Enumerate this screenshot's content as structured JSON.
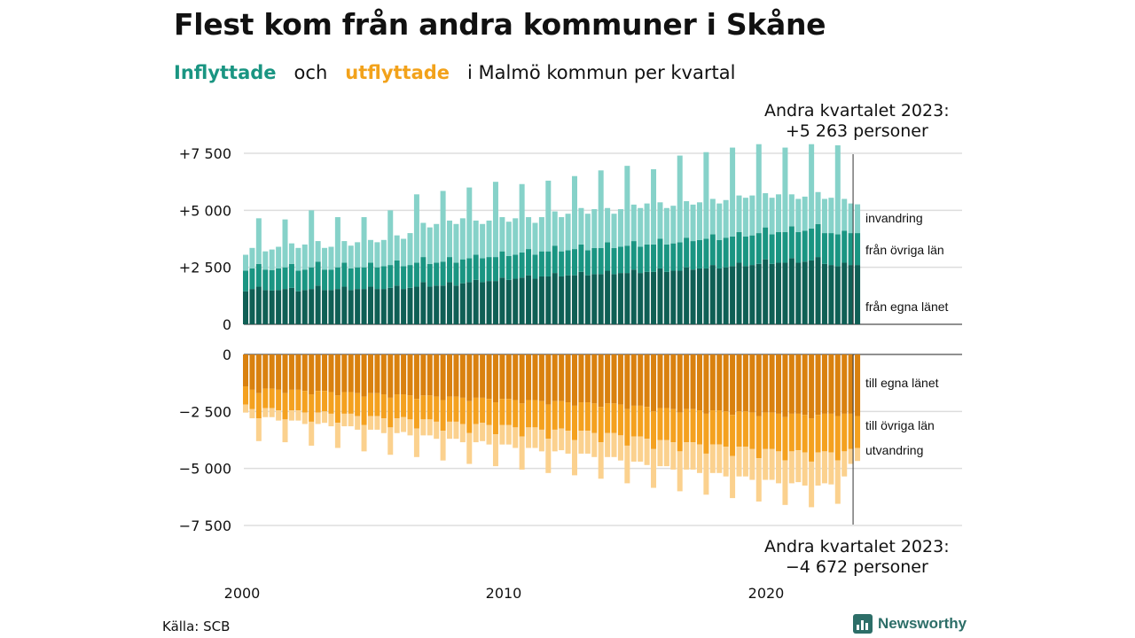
{
  "title": "Flest kom från andra kommuner i Skåne",
  "subtitle": {
    "inflyttade": "Inflyttade",
    "och": "och",
    "utflyttade": "utflyttade",
    "rest": "i Malmö  kommun  per  kvartal"
  },
  "note_top": {
    "line1": "Andra kvartalet 2023:",
    "line2": "+5 263 personer"
  },
  "note_bottom": {
    "line1": "Andra kvartalet 2023:",
    "line2": "−4 672 personer"
  },
  "source": "Källa: SCB",
  "brand": "Newsworthy",
  "colors": {
    "in_egna": "#0f5f55",
    "in_ovriga": "#1a9582",
    "in_invandring": "#86d2c9",
    "out_egna": "#d9810f",
    "out_ovriga": "#f4a11f",
    "out_utvandring": "#fbd18e",
    "grid": "#dddddd"
  },
  "chart_data": {
    "type": "bar",
    "stacked": true,
    "x": {
      "start": "2000 Q1",
      "end": "2023 Q2",
      "ticks": [
        "2000",
        "2010",
        "2020"
      ]
    },
    "inflow": {
      "ylim": [
        0,
        7500
      ],
      "ticks": [
        0,
        2500,
        5000,
        7500
      ],
      "tick_labels": [
        "0",
        "+2 500",
        "+5 000",
        "+7 500"
      ],
      "series": [
        {
          "name": "från egna länet",
          "values": [
            1450,
            1550,
            1650,
            1500,
            1480,
            1500,
            1550,
            1600,
            1450,
            1500,
            1550,
            1700,
            1500,
            1500,
            1550,
            1650,
            1500,
            1550,
            1550,
            1650,
            1550,
            1550,
            1600,
            1700,
            1550,
            1600,
            1650,
            1850,
            1650,
            1700,
            1700,
            1850,
            1700,
            1800,
            1850,
            1950,
            1850,
            1900,
            1900,
            2050,
            1950,
            2000,
            2050,
            2150,
            2000,
            2100,
            2100,
            2250,
            2100,
            2150,
            2150,
            2300,
            2150,
            2200,
            2200,
            2350,
            2200,
            2250,
            2250,
            2400,
            2250,
            2300,
            2300,
            2450,
            2300,
            2350,
            2350,
            2500,
            2400,
            2450,
            2450,
            2600,
            2450,
            2500,
            2550,
            2700,
            2550,
            2600,
            2650,
            2850,
            2650,
            2700,
            2700,
            2900,
            2700,
            2750,
            2800,
            2950,
            2650,
            2600,
            2550,
            2700,
            2600,
            2600
          ]
        },
        {
          "name": "från övriga län",
          "values": [
            900,
            900,
            1000,
            900,
            900,
            950,
            950,
            1050,
            900,
            900,
            950,
            1050,
            900,
            900,
            950,
            1050,
            950,
            950,
            950,
            1050,
            950,
            1000,
            1000,
            1100,
            1000,
            1000,
            1050,
            1100,
            1000,
            1000,
            1050,
            1100,
            1000,
            1050,
            1050,
            1100,
            1050,
            1050,
            1050,
            1150,
            1050,
            1050,
            1100,
            1150,
            1050,
            1100,
            1100,
            1200,
            1100,
            1100,
            1150,
            1200,
            1100,
            1150,
            1150,
            1250,
            1150,
            1150,
            1200,
            1250,
            1150,
            1200,
            1200,
            1300,
            1200,
            1200,
            1250,
            1300,
            1250,
            1250,
            1300,
            1350,
            1250,
            1300,
            1300,
            1350,
            1300,
            1300,
            1350,
            1400,
            1300,
            1350,
            1350,
            1400,
            1350,
            1350,
            1400,
            1450,
            1350,
            1400,
            1400,
            1400,
            1400,
            1400
          ]
        },
        {
          "name": "invandring",
          "values": [
            700,
            900,
            2000,
            800,
            900,
            950,
            2100,
            900,
            1000,
            1100,
            2500,
            900,
            950,
            1000,
            2200,
            950,
            1000,
            1100,
            2200,
            1000,
            1100,
            1150,
            2400,
            1100,
            1200,
            1400,
            3000,
            1500,
            1600,
            1700,
            3100,
            1600,
            1700,
            1800,
            3100,
            1500,
            1500,
            1600,
            3300,
            1500,
            1500,
            1600,
            3000,
            1400,
            1400,
            1500,
            3100,
            1500,
            1500,
            1600,
            3200,
            1600,
            1600,
            1700,
            3400,
            1500,
            1500,
            1650,
            3500,
            1600,
            1700,
            1800,
            3300,
            1600,
            1600,
            1650,
            3800,
            1600,
            1600,
            1650,
            3800,
            1550,
            1600,
            1650,
            3900,
            1600,
            1700,
            1750,
            3900,
            1500,
            1600,
            1650,
            3700,
            1400,
            1450,
            1500,
            3700,
            1400,
            1500,
            1550,
            3900,
            1400,
            1300,
            1263
          ]
        }
      ],
      "annotations": [
        "invandring",
        "från övriga län",
        "från egna länet"
      ]
    },
    "outflow": {
      "ylim": [
        -7500,
        0
      ],
      "ticks": [
        0,
        -2500,
        -5000,
        -7500
      ],
      "tick_labels": [
        "0",
        "−2 500",
        "−5 000",
        "−7 500"
      ],
      "series": [
        {
          "name": "till egna länet",
          "values": [
            -1400,
            -1550,
            -1700,
            -1500,
            -1500,
            -1550,
            -1700,
            -1550,
            -1550,
            -1600,
            -1750,
            -1600,
            -1600,
            -1650,
            -1800,
            -1650,
            -1650,
            -1700,
            -1850,
            -1700,
            -1700,
            -1750,
            -1900,
            -1750,
            -1750,
            -1800,
            -1950,
            -1800,
            -1800,
            -1850,
            -2000,
            -1850,
            -1850,
            -1900,
            -2050,
            -1900,
            -1900,
            -1950,
            -2100,
            -1950,
            -1950,
            -2000,
            -2150,
            -2000,
            -2000,
            -2050,
            -2200,
            -2050,
            -2050,
            -2100,
            -2250,
            -2100,
            -2100,
            -2150,
            -2300,
            -2150,
            -2150,
            -2200,
            -2400,
            -2250,
            -2250,
            -2300,
            -2500,
            -2350,
            -2350,
            -2400,
            -2550,
            -2400,
            -2400,
            -2450,
            -2600,
            -2450,
            -2450,
            -2500,
            -2650,
            -2500,
            -2500,
            -2550,
            -2700,
            -2550,
            -2550,
            -2600,
            -2750,
            -2600,
            -2600,
            -2650,
            -2800,
            -2650,
            -2600,
            -2600,
            -2700,
            -2600,
            -2600,
            -2700
          ]
        },
        {
          "name": "till övriga län",
          "values": [
            -800,
            -850,
            -1100,
            -850,
            -850,
            -900,
            -1150,
            -900,
            -900,
            -950,
            -1200,
            -950,
            -900,
            -950,
            -1200,
            -950,
            -950,
            -1000,
            -1250,
            -1000,
            -1000,
            -1050,
            -1300,
            -1050,
            -1000,
            -1050,
            -1300,
            -1050,
            -1050,
            -1100,
            -1350,
            -1100,
            -1100,
            -1150,
            -1400,
            -1150,
            -1100,
            -1150,
            -1400,
            -1150,
            -1150,
            -1200,
            -1450,
            -1200,
            -1200,
            -1250,
            -1500,
            -1250,
            -1200,
            -1250,
            -1500,
            -1250,
            -1250,
            -1300,
            -1550,
            -1300,
            -1300,
            -1350,
            -1600,
            -1350,
            -1350,
            -1400,
            -1650,
            -1400,
            -1400,
            -1450,
            -1700,
            -1450,
            -1450,
            -1500,
            -1750,
            -1500,
            -1500,
            -1550,
            -1800,
            -1550,
            -1550,
            -1600,
            -1850,
            -1600,
            -1600,
            -1650,
            -1900,
            -1650,
            -1600,
            -1650,
            -1900,
            -1650,
            -1650,
            -1700,
            -1950,
            -1650,
            -1550,
            -1400
          ]
        },
        {
          "name": "utvandring",
          "values": [
            -350,
            -400,
            -1000,
            -400,
            -400,
            -450,
            -1000,
            -450,
            -450,
            -500,
            -1050,
            -500,
            -500,
            -550,
            -1100,
            -550,
            -550,
            -600,
            -1150,
            -600,
            -600,
            -650,
            -1200,
            -650,
            -650,
            -700,
            -1250,
            -700,
            -700,
            -750,
            -1300,
            -750,
            -750,
            -800,
            -1350,
            -800,
            -800,
            -850,
            -1400,
            -850,
            -850,
            -900,
            -1450,
            -900,
            -900,
            -950,
            -1500,
            -950,
            -950,
            -1000,
            -1550,
            -1000,
            -1000,
            -1050,
            -1600,
            -1050,
            -1050,
            -1100,
            -1650,
            -1100,
            -1100,
            -1150,
            -1700,
            -1150,
            -1150,
            -1200,
            -1750,
            -1200,
            -1200,
            -1250,
            -1800,
            -1250,
            -1250,
            -1300,
            -1850,
            -1300,
            -1300,
            -1350,
            -1900,
            -1350,
            -1350,
            -1400,
            -1950,
            -1400,
            -1400,
            -1450,
            -2000,
            -1450,
            -1400,
            -1400,
            -1900,
            -1100,
            -650,
            -572
          ]
        }
      ],
      "annotations": [
        "till egna länet",
        "till övriga län",
        "utvandring"
      ]
    }
  }
}
